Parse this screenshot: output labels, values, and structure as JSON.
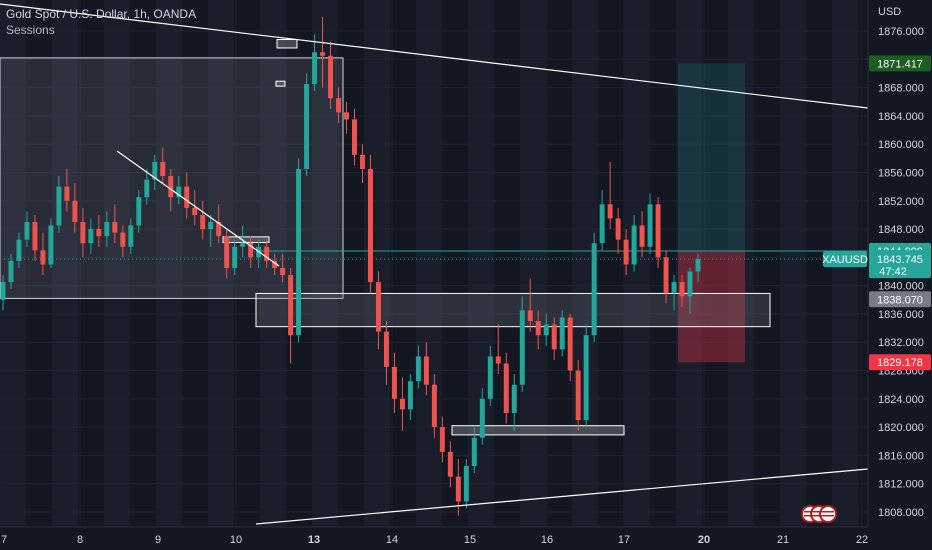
{
  "header": {
    "title": "Gold Spot / U.S. Dollar, 1h, OANDA",
    "indicator": "Sessions"
  },
  "chart_data": {
    "type": "candlestick",
    "symbol": "XAUUSD",
    "currency_label": "USD",
    "y_ticks": [
      1876,
      1872,
      1868,
      1864,
      1860,
      1856,
      1852,
      1848,
      1844,
      1840,
      1836,
      1832,
      1828,
      1824,
      1820,
      1816,
      1812,
      1808
    ],
    "y_tick_labels": [
      "1876.000",
      "1872.000",
      "1868.000",
      "1864.000",
      "1860.000",
      "1856.000",
      "1852.000",
      "1848.000",
      "1844.000",
      "1840.000",
      "1836.000",
      "1832.000",
      "1828.000",
      "1824.000",
      "1820.000",
      "1816.000",
      "1812.000",
      "1808.000"
    ],
    "ylim": [
      1806.5,
      1879
    ],
    "x_ticks": [
      {
        "label": "7",
        "bold": false
      },
      {
        "label": "8",
        "bold": false
      },
      {
        "label": "9",
        "bold": false
      },
      {
        "label": "10",
        "bold": false
      },
      {
        "label": "13",
        "bold": true
      },
      {
        "label": "14",
        "bold": false
      },
      {
        "label": "15",
        "bold": false
      },
      {
        "label": "16",
        "bold": false
      },
      {
        "label": "17",
        "bold": false
      },
      {
        "label": "20",
        "bold": true
      },
      {
        "label": "21",
        "bold": false
      },
      {
        "label": "22",
        "bold": false
      }
    ],
    "price_tags": [
      {
        "label": "1871.417",
        "value": 1871.417,
        "color": "#1b5e20"
      },
      {
        "label": "1844.898",
        "value": 1844.898,
        "color": "#26a69a"
      },
      {
        "label": "1838.070",
        "value": 1838.07,
        "color": "#787b86"
      },
      {
        "label": "1829.178",
        "value": 1829.178,
        "color": "#f23645"
      }
    ],
    "current": {
      "symbol": "XAUUSD",
      "price": "1843.745",
      "countdown": "47:42",
      "value": 1843.745
    },
    "ohlc": [
      [
        1838.0,
        1841.5,
        1836.5,
        1840.5
      ],
      [
        1840.5,
        1844.5,
        1839.5,
        1843.5
      ],
      [
        1843.5,
        1847.5,
        1842.5,
        1846.5
      ],
      [
        1846.5,
        1850.5,
        1845.5,
        1849.0
      ],
      [
        1849.0,
        1850.0,
        1843.5,
        1845.0
      ],
      [
        1845.0,
        1847.5,
        1841.5,
        1843.0
      ],
      [
        1843.0,
        1849.5,
        1842.5,
        1848.5
      ],
      [
        1848.5,
        1855.5,
        1847.5,
        1854.0
      ],
      [
        1854.0,
        1856.5,
        1850.5,
        1852.0
      ],
      [
        1852.0,
        1854.5,
        1847.5,
        1849.0
      ],
      [
        1849.0,
        1851.0,
        1844.0,
        1846.0
      ],
      [
        1846.0,
        1849.5,
        1844.5,
        1848.0
      ],
      [
        1848.0,
        1850.0,
        1845.5,
        1847.0
      ],
      [
        1847.0,
        1850.5,
        1845.5,
        1849.0
      ],
      [
        1849.0,
        1851.5,
        1846.0,
        1847.5
      ],
      [
        1847.5,
        1848.5,
        1844.0,
        1845.5
      ],
      [
        1845.5,
        1849.5,
        1844.5,
        1848.5
      ],
      [
        1848.5,
        1853.5,
        1847.5,
        1852.5
      ],
      [
        1852.5,
        1856.5,
        1851.5,
        1855.0
      ],
      [
        1855.0,
        1858.5,
        1853.5,
        1857.5
      ],
      [
        1857.5,
        1859.5,
        1854.5,
        1855.5
      ],
      [
        1855.5,
        1856.5,
        1850.5,
        1852.5
      ],
      [
        1852.5,
        1855.5,
        1851.5,
        1854.0
      ],
      [
        1854.0,
        1856.0,
        1849.5,
        1851.0
      ],
      [
        1851.0,
        1853.5,
        1848.5,
        1850.0
      ],
      [
        1850.0,
        1852.0,
        1846.5,
        1848.0
      ],
      [
        1848.0,
        1850.0,
        1845.5,
        1849.0
      ],
      [
        1849.0,
        1851.5,
        1846.0,
        1847.0
      ],
      [
        1847.0,
        1848.0,
        1841.0,
        1842.5
      ],
      [
        1842.5,
        1846.5,
        1841.5,
        1845.5
      ],
      [
        1845.5,
        1848.5,
        1844.0,
        1846.0
      ],
      [
        1846.0,
        1847.0,
        1842.5,
        1844.0
      ],
      [
        1844.0,
        1846.5,
        1842.5,
        1845.5
      ],
      [
        1845.5,
        1846.5,
        1842.5,
        1843.5
      ],
      [
        1843.5,
        1844.5,
        1841.5,
        1842.5
      ],
      [
        1842.5,
        1844.5,
        1840.5,
        1841.5
      ],
      [
        1841.5,
        1842.5,
        1829.0,
        1833.0
      ],
      [
        1833.0,
        1858.0,
        1832.0,
        1856.5
      ],
      [
        1856.5,
        1870.0,
        1855.5,
        1868.5
      ],
      [
        1868.5,
        1875.5,
        1867.5,
        1873.0
      ],
      [
        1873.0,
        1878.0,
        1868.0,
        1872.5
      ],
      [
        1872.5,
        1874.5,
        1865.0,
        1866.5
      ],
      [
        1866.5,
        1868.0,
        1863.0,
        1864.5
      ],
      [
        1864.5,
        1866.0,
        1861.5,
        1863.5
      ],
      [
        1863.5,
        1865.0,
        1857.0,
        1858.5
      ],
      [
        1858.5,
        1860.0,
        1854.5,
        1856.5
      ],
      [
        1856.5,
        1858.5,
        1839.0,
        1840.5
      ],
      [
        1840.5,
        1842.0,
        1831.0,
        1833.5
      ],
      [
        1833.5,
        1835.0,
        1826.0,
        1828.5
      ],
      [
        1828.5,
        1830.5,
        1822.0,
        1824.0
      ],
      [
        1824.0,
        1827.0,
        1819.5,
        1822.5
      ],
      [
        1822.5,
        1827.5,
        1821.0,
        1826.5
      ],
      [
        1826.5,
        1831.5,
        1825.5,
        1830.0
      ],
      [
        1830.0,
        1832.0,
        1824.5,
        1826.0
      ],
      [
        1826.0,
        1827.5,
        1818.5,
        1820.0
      ],
      [
        1820.0,
        1821.5,
        1815.0,
        1816.5
      ],
      [
        1816.5,
        1818.0,
        1811.5,
        1813.0
      ],
      [
        1813.0,
        1815.5,
        1807.5,
        1809.5
      ],
      [
        1809.5,
        1815.5,
        1808.5,
        1814.5
      ],
      [
        1814.5,
        1820.0,
        1813.5,
        1818.5
      ],
      [
        1818.5,
        1825.5,
        1817.5,
        1824.0
      ],
      [
        1824.0,
        1831.5,
        1823.0,
        1830.0
      ],
      [
        1830.0,
        1834.5,
        1827.5,
        1829.0
      ],
      [
        1829.0,
        1830.5,
        1820.5,
        1822.0
      ],
      [
        1822.0,
        1827.5,
        1819.5,
        1826.0
      ],
      [
        1826.0,
        1838.5,
        1825.0,
        1836.5
      ],
      [
        1836.5,
        1841.0,
        1833.5,
        1835.0
      ],
      [
        1835.0,
        1836.5,
        1831.0,
        1833.0
      ],
      [
        1833.0,
        1836.0,
        1831.5,
        1834.5
      ],
      [
        1834.5,
        1835.5,
        1829.5,
        1831.0
      ],
      [
        1831.0,
        1836.5,
        1830.0,
        1835.5
      ],
      [
        1835.5,
        1836.0,
        1826.5,
        1828.0
      ],
      [
        1828.0,
        1829.5,
        1819.5,
        1821.0
      ],
      [
        1821.0,
        1834.5,
        1820.0,
        1833.0
      ],
      [
        1833.0,
        1847.5,
        1832.0,
        1846.0
      ],
      [
        1846.0,
        1853.5,
        1845.0,
        1851.5
      ],
      [
        1851.5,
        1857.5,
        1848.0,
        1849.5
      ],
      [
        1849.5,
        1851.0,
        1844.5,
        1846.5
      ],
      [
        1846.5,
        1848.0,
        1841.5,
        1843.0
      ],
      [
        1843.0,
        1850.0,
        1842.0,
        1848.5
      ],
      [
        1848.5,
        1850.5,
        1844.0,
        1845.5
      ],
      [
        1845.5,
        1853.0,
        1844.5,
        1851.5
      ],
      [
        1851.5,
        1852.5,
        1842.5,
        1844.0
      ],
      [
        1844.0,
        1845.0,
        1837.5,
        1839.0
      ],
      [
        1839.0,
        1841.5,
        1836.5,
        1840.5
      ],
      [
        1840.5,
        1841.5,
        1837.0,
        1838.5
      ],
      [
        1838.5,
        1842.5,
        1836.0,
        1842.0
      ],
      [
        1842.0,
        1844.5,
        1840.5,
        1843.745
      ]
    ]
  }
}
